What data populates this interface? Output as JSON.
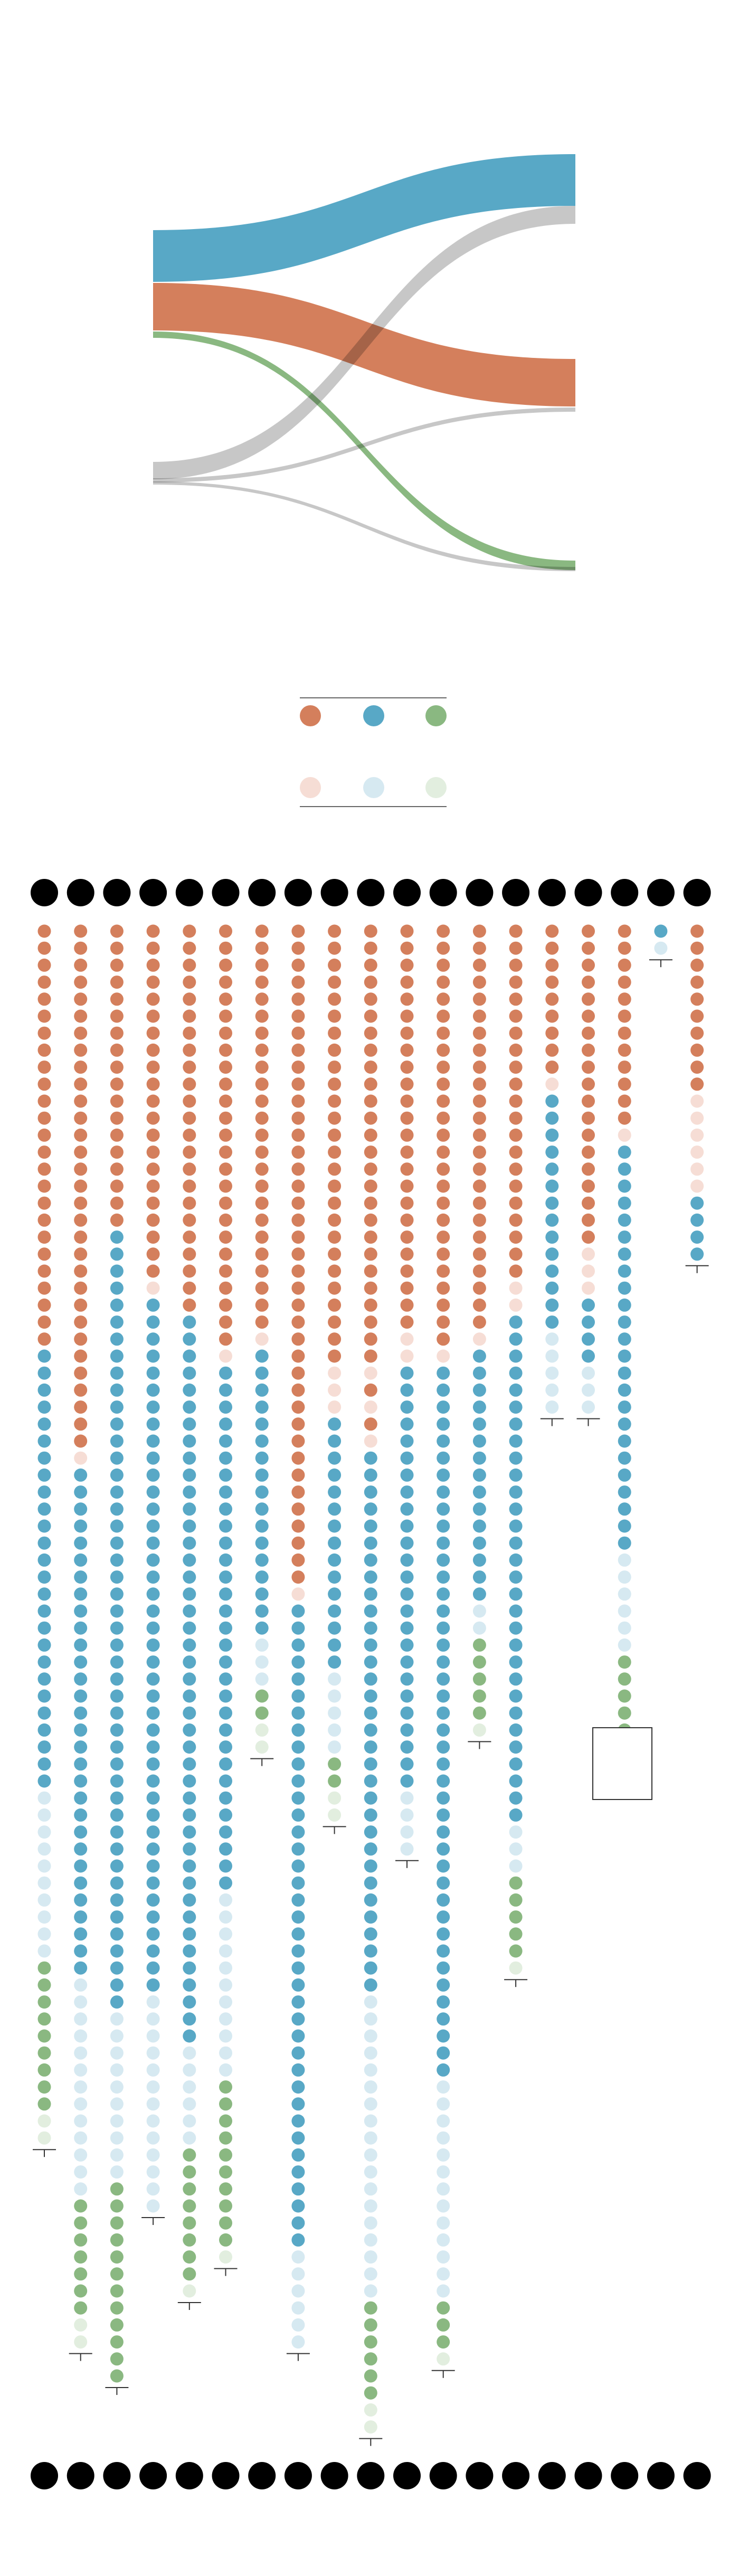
{
  "colors": {
    "orange": "#d47f5c",
    "blue": "#58a8c6",
    "green": "#8ab881",
    "gray": "#bdbdbd",
    "orange_light": "#f6ddd5",
    "blue_light": "#d6e9f1",
    "green_light": "#e2eedf",
    "node": "#000000",
    "tick": "#333333"
  },
  "legend": {
    "solid": [
      {
        "color_key": "orange"
      },
      {
        "color_key": "blue"
      },
      {
        "color_key": "green"
      }
    ],
    "faded": [
      {
        "color_key": "orange_light"
      },
      {
        "color_key": "blue_light"
      },
      {
        "color_key": "green_light"
      }
    ]
  },
  "sankey": {
    "flows": [
      {
        "color_key": "blue",
        "from": "band-1",
        "to": "band-1",
        "weight": 1.0
      },
      {
        "color_key": "orange",
        "from": "band-2",
        "to": "band-2",
        "weight": 0.9
      },
      {
        "color_key": "green",
        "from": "band-3",
        "to": "band-4",
        "weight": 0.2
      },
      {
        "color_key": "gray",
        "from": "band-4",
        "to": "band-1",
        "weight": 0.4
      },
      {
        "color_key": "gray",
        "from": "band-4",
        "to": "band-3",
        "weight": 0.12
      },
      {
        "color_key": "gray",
        "from": "band-4",
        "to": "band-4",
        "weight": 0.05
      }
    ]
  },
  "columns": [
    {
      "segments": [
        [
          "orange",
          25
        ],
        [
          "blue",
          26
        ],
        [
          "blue_light",
          10
        ],
        [
          "green",
          9
        ],
        [
          "green_light",
          2
        ]
      ]
    },
    {
      "segments": [
        [
          "orange",
          31
        ],
        [
          "orange_light",
          1
        ],
        [
          "blue",
          30
        ],
        [
          "blue_light",
          13
        ],
        [
          "green",
          7
        ],
        [
          "green_light",
          2
        ]
      ]
    },
    {
      "segments": [
        [
          "orange",
          18
        ],
        [
          "blue",
          46
        ],
        [
          "blue_light",
          10
        ],
        [
          "green",
          12
        ]
      ]
    },
    {
      "segments": [
        [
          "orange",
          21
        ],
        [
          "orange_light",
          1
        ],
        [
          "blue",
          41
        ],
        [
          "blue_light",
          13
        ]
      ]
    },
    {
      "segments": [
        [
          "orange",
          23
        ],
        [
          "blue",
          43
        ],
        [
          "blue_light",
          6
        ],
        [
          "green",
          8
        ],
        [
          "green_light",
          1
        ]
      ]
    },
    {
      "segments": [
        [
          "orange",
          25
        ],
        [
          "orange_light",
          1
        ],
        [
          "blue",
          31
        ],
        [
          "blue_light",
          11
        ],
        [
          "green",
          10
        ],
        [
          "green_light",
          1
        ]
      ]
    },
    {
      "segments": [
        [
          "orange",
          24
        ],
        [
          "orange_light",
          1
        ],
        [
          "blue",
          17
        ],
        [
          "blue_light",
          3
        ],
        [
          "green",
          2
        ],
        [
          "green_light",
          2
        ]
      ]
    },
    {
      "segments": [
        [
          "orange",
          39
        ],
        [
          "orange_light",
          1
        ],
        [
          "blue",
          38
        ],
        [
          "blue_light",
          6
        ]
      ]
    },
    {
      "segments": [
        [
          "orange",
          26
        ],
        [
          "orange_light",
          3
        ],
        [
          "blue",
          15
        ],
        [
          "blue_light",
          5
        ],
        [
          "green",
          2
        ],
        [
          "green_light",
          2
        ]
      ]
    },
    {
      "segments": [
        [
          "orange",
          26
        ],
        [
          "orange_light",
          1
        ],
        [
          "orange",
          1
        ],
        [
          "orange_light",
          1
        ],
        [
          "orange",
          1
        ],
        [
          "orange_light",
          1
        ],
        [
          "blue",
          32
        ],
        [
          "blue_light",
          18
        ],
        [
          "green",
          6
        ],
        [
          "green_light",
          2
        ]
      ]
    },
    {
      "segments": [
        [
          "orange",
          24
        ],
        [
          "orange_light",
          2
        ],
        [
          "blue",
          25
        ],
        [
          "blue_light",
          4
        ]
      ]
    },
    {
      "segments": [
        [
          "orange",
          25
        ],
        [
          "orange_light",
          1
        ],
        [
          "blue",
          42
        ],
        [
          "blue_light",
          13
        ],
        [
          "green",
          3
        ],
        [
          "green_light",
          1
        ]
      ]
    },
    {
      "segments": [
        [
          "orange",
          24
        ],
        [
          "orange_light",
          1
        ],
        [
          "blue",
          15
        ],
        [
          "blue_light",
          2
        ],
        [
          "green",
          5
        ],
        [
          "green_light",
          1
        ]
      ]
    },
    {
      "segments": [
        [
          "orange",
          21
        ],
        [
          "orange_light",
          2
        ],
        [
          "blue",
          30
        ],
        [
          "blue_light",
          3
        ],
        [
          "green",
          5
        ],
        [
          "green_light",
          1
        ]
      ]
    },
    {
      "segments": [
        [
          "orange",
          9
        ],
        [
          "orange_light",
          1
        ],
        [
          "blue",
          14
        ],
        [
          "blue_light",
          5
        ]
      ]
    },
    {
      "segments": [
        [
          "orange",
          19
        ],
        [
          "orange_light",
          3
        ],
        [
          "blue",
          4
        ],
        [
          "blue_light",
          3
        ]
      ]
    },
    {
      "segments": [
        [
          "orange",
          12
        ],
        [
          "orange_light",
          1
        ],
        [
          "blue",
          24
        ],
        [
          "blue_light",
          6
        ],
        [
          "green",
          5
        ]
      ]
    },
    {
      "segments": [
        [
          "blue",
          1
        ],
        [
          "blue_light",
          1
        ]
      ]
    },
    {
      "segments": [
        [
          "orange",
          10
        ],
        [
          "orange_light",
          6
        ],
        [
          "blue",
          4
        ]
      ]
    }
  ],
  "callout": {
    "column": 16
  }
}
